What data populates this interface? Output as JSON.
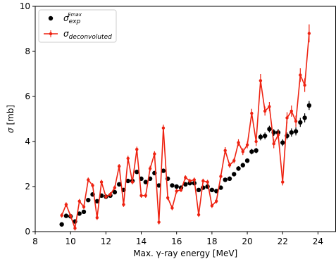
{
  "chart_data": {
    "type": "errorbar",
    "xlabel": "Max. γ-ray energy [MeV]",
    "ylabel_symbol": "σ",
    "ylabel_unit": "[mb]",
    "xlim": [
      8,
      25
    ],
    "ylim": [
      0,
      10
    ],
    "xticks": [
      8,
      10,
      12,
      14,
      16,
      18,
      20,
      22,
      24
    ],
    "yticks": [
      0,
      2,
      4,
      6,
      8,
      10
    ],
    "legend": "upper left",
    "x": [
      9.5,
      9.75,
      10,
      10.25,
      10.5,
      10.75,
      11,
      11.25,
      11.5,
      11.75,
      12,
      12.25,
      12.5,
      12.75,
      13,
      13.25,
      13.5,
      13.75,
      14,
      14.25,
      14.5,
      14.75,
      15,
      15.25,
      15.5,
      15.75,
      16,
      16.25,
      16.5,
      16.75,
      17,
      17.25,
      17.5,
      17.75,
      18,
      18.25,
      18.5,
      18.75,
      19,
      19.25,
      19.5,
      19.75,
      20,
      20.25,
      20.5,
      20.75,
      21,
      21.25,
      21.5,
      21.75,
      22,
      22.25,
      22.5,
      22.75,
      23,
      23.25,
      23.5
    ],
    "series": [
      {
        "name": "σ",
        "name_sub": "exp",
        "name_sup": "Emax",
        "color": "#000000",
        "style": "points",
        "values": [
          0.32,
          0.7,
          0.68,
          0.45,
          0.8,
          0.88,
          1.4,
          1.65,
          1.35,
          1.6,
          1.55,
          1.6,
          1.75,
          2.1,
          1.85,
          2.25,
          2.25,
          2.65,
          2.35,
          2.2,
          2.35,
          2.6,
          2.05,
          2.7,
          2.35,
          2.05,
          2.0,
          1.95,
          2.1,
          2.15,
          2.15,
          1.85,
          1.95,
          2.0,
          1.85,
          1.8,
          1.95,
          2.3,
          2.35,
          2.55,
          2.8,
          2.95,
          3.15,
          3.55,
          3.6,
          4.2,
          4.25,
          4.55,
          4.4,
          4.4,
          3.95,
          4.25,
          4.4,
          4.45,
          4.85,
          5.05,
          5.6
        ],
        "errors": [
          0.05,
          0.05,
          0.05,
          0.05,
          0.05,
          0.05,
          0.05,
          0.05,
          0.05,
          0.05,
          0.05,
          0.05,
          0.05,
          0.05,
          0.05,
          0.05,
          0.05,
          0.05,
          0.05,
          0.05,
          0.05,
          0.05,
          0.05,
          0.05,
          0.05,
          0.05,
          0.05,
          0.05,
          0.05,
          0.05,
          0.05,
          0.05,
          0.05,
          0.05,
          0.05,
          0.05,
          0.05,
          0.1,
          0.1,
          0.1,
          0.1,
          0.1,
          0.1,
          0.12,
          0.12,
          0.15,
          0.15,
          0.15,
          0.15,
          0.15,
          0.15,
          0.15,
          0.18,
          0.18,
          0.2,
          0.2,
          0.2
        ]
      },
      {
        "name": "σ",
        "name_sub": "deconvoluted",
        "color": "#ee2211",
        "style": "line",
        "values": [
          0.72,
          1.2,
          0.7,
          0.15,
          1.35,
          1.1,
          2.3,
          2.05,
          0.62,
          2.2,
          1.55,
          1.65,
          1.95,
          2.9,
          1.2,
          3.25,
          2.2,
          3.65,
          1.6,
          1.6,
          2.8,
          3.45,
          0.42,
          4.6,
          1.5,
          1.05,
          1.8,
          1.85,
          2.4,
          2.25,
          2.3,
          0.75,
          2.25,
          2.2,
          1.15,
          1.35,
          2.45,
          3.6,
          2.95,
          3.15,
          3.95,
          3.55,
          3.85,
          5.25,
          4.0,
          6.7,
          5.35,
          5.55,
          3.9,
          4.3,
          2.2,
          5.05,
          5.35,
          4.9,
          6.95,
          6.5,
          8.8
        ],
        "errors": [
          0.1,
          0.1,
          0.1,
          0.1,
          0.1,
          0.1,
          0.1,
          0.1,
          0.1,
          0.1,
          0.1,
          0.1,
          0.1,
          0.1,
          0.1,
          0.12,
          0.1,
          0.12,
          0.1,
          0.1,
          0.12,
          0.12,
          0.1,
          0.15,
          0.1,
          0.1,
          0.1,
          0.1,
          0.1,
          0.1,
          0.1,
          0.1,
          0.1,
          0.1,
          0.1,
          0.1,
          0.12,
          0.15,
          0.12,
          0.12,
          0.15,
          0.15,
          0.15,
          0.2,
          0.2,
          0.3,
          0.2,
          0.2,
          0.2,
          0.2,
          0.15,
          0.25,
          0.25,
          0.25,
          0.3,
          0.3,
          0.4
        ]
      }
    ]
  }
}
